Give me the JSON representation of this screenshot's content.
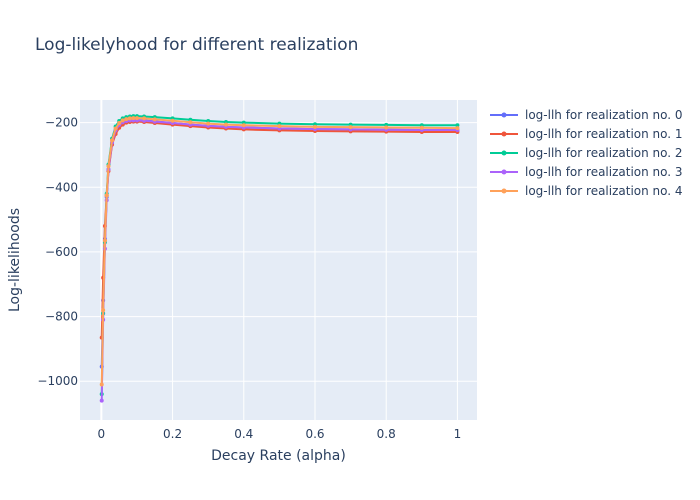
{
  "chart_data": {
    "type": "line",
    "title": "Log-likelyhood for different realization",
    "xlabel": "Decay Rate (alpha)",
    "ylabel": "Log-likelihoods",
    "xlim": [
      -0.06,
      1.055
    ],
    "ylim": [
      -1120,
      -130
    ],
    "xticks": [
      0,
      0.2,
      0.4,
      0.6,
      0.8,
      1
    ],
    "xtick_labels": [
      "0",
      "0.2",
      "0.4",
      "0.6",
      "0.8",
      "1"
    ],
    "yticks": [
      -1000,
      -800,
      -600,
      -400,
      -200
    ],
    "ytick_labels": [
      "−1000",
      "−800",
      "−600",
      "−400",
      "−200"
    ],
    "grid": true,
    "legend_position": "right",
    "x": [
      0.001,
      0.005,
      0.01,
      0.015,
      0.02,
      0.03,
      0.04,
      0.05,
      0.06,
      0.07,
      0.08,
      0.09,
      0.1,
      0.12,
      0.15,
      0.2,
      0.25,
      0.3,
      0.35,
      0.4,
      0.5,
      0.6,
      0.7,
      0.8,
      0.9,
      1.0
    ],
    "series": [
      {
        "name": "log-llh for realization no. 0",
        "color": "#636efa",
        "values": [
          -955,
          -750,
          -560,
          -430,
          -345,
          -265,
          -228,
          -210,
          -200,
          -195,
          -193,
          -192,
          -192,
          -193,
          -196,
          -201,
          -206,
          -210,
          -213,
          -215,
          -218,
          -220,
          -221,
          -222,
          -223,
          -224
        ]
      },
      {
        "name": "log-llh for realization no. 1",
        "color": "#EF553B",
        "values": [
          -865,
          -680,
          -520,
          -425,
          -350,
          -268,
          -235,
          -216,
          -206,
          -200,
          -198,
          -197,
          -197,
          -198,
          -201,
          -206,
          -211,
          -215,
          -218,
          -221,
          -224,
          -226,
          -227,
          -228,
          -229,
          -229
        ]
      },
      {
        "name": "log-llh for realization no. 2",
        "color": "#00cc96",
        "values": [
          -1040,
          -790,
          -570,
          -420,
          -330,
          -250,
          -212,
          -195,
          -187,
          -183,
          -181,
          -180,
          -180,
          -181,
          -183,
          -187,
          -191,
          -195,
          -198,
          -200,
          -203,
          -205,
          -206,
          -207,
          -208,
          -208
        ]
      },
      {
        "name": "log-llh for realization no. 3",
        "color": "#ab63fa",
        "values": [
          -1060,
          -810,
          -590,
          -440,
          -345,
          -262,
          -224,
          -207,
          -199,
          -195,
          -193,
          -193,
          -193,
          -194,
          -197,
          -201,
          -206,
          -210,
          -213,
          -215,
          -218,
          -220,
          -221,
          -222,
          -223,
          -223
        ]
      },
      {
        "name": "log-llh for realization no. 4",
        "color": "#FFA15A",
        "values": [
          -1010,
          -780,
          -565,
          -425,
          -335,
          -255,
          -218,
          -201,
          -193,
          -189,
          -187,
          -186,
          -186,
          -187,
          -190,
          -194,
          -199,
          -203,
          -206,
          -208,
          -211,
          -213,
          -214,
          -215,
          -216,
          -217
        ]
      }
    ]
  }
}
